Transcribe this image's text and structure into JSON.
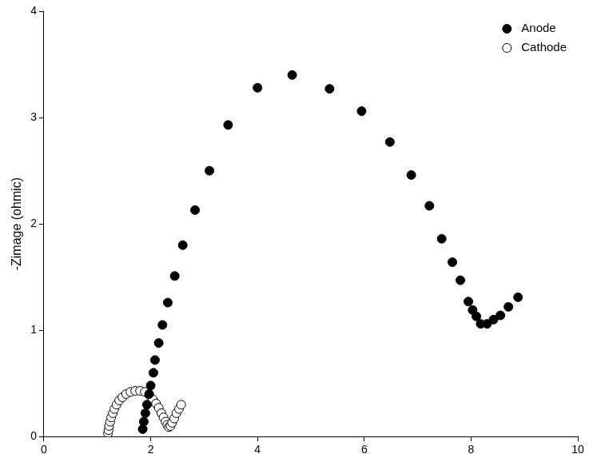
{
  "chart_data": {
    "type": "scatter",
    "y_label": "-Zimage (ohmic)",
    "xlim": [
      0,
      10
    ],
    "xticks": [
      0,
      2,
      4,
      6,
      8,
      10
    ],
    "ylim": [
      0,
      4
    ],
    "yticks": [
      0,
      1,
      2,
      3,
      4
    ],
    "grid": false,
    "legend": "upper right",
    "series": [
      {
        "name": "Anode",
        "color": "#000000",
        "marker": "circle",
        "x": [
          1.85,
          1.87,
          1.9,
          1.93,
          1.97,
          2.0,
          2.05,
          2.08,
          2.15,
          2.22,
          2.32,
          2.45,
          2.6,
          2.83,
          3.1,
          3.45,
          4.0,
          4.65,
          5.35,
          5.95,
          6.48,
          6.88,
          7.22,
          7.45,
          7.65,
          7.8,
          7.95,
          8.03,
          8.1,
          8.18,
          8.3,
          8.42,
          8.55,
          8.7,
          8.88
        ],
        "values": [
          0.07,
          0.14,
          0.22,
          0.3,
          0.4,
          0.48,
          0.6,
          0.72,
          0.88,
          1.05,
          1.26,
          1.51,
          1.8,
          2.13,
          2.5,
          2.93,
          3.28,
          3.4,
          3.27,
          3.06,
          2.77,
          2.46,
          2.17,
          1.86,
          1.64,
          1.47,
          1.27,
          1.19,
          1.13,
          1.06,
          1.06,
          1.1,
          1.14,
          1.22,
          1.31
        ]
      },
      {
        "name": "Cathode",
        "color": "#000000",
        "marker": "open_circle",
        "x": [
          1.2,
          1.21,
          1.22,
          1.24,
          1.26,
          1.29,
          1.32,
          1.36,
          1.41,
          1.47,
          1.54,
          1.62,
          1.71,
          1.8,
          1.89,
          1.97,
          2.04,
          2.1,
          2.15,
          2.2,
          2.24,
          2.28,
          2.31,
          2.34,
          2.37,
          2.4,
          2.44,
          2.48,
          2.53,
          2.57
        ],
        "values": [
          0.03,
          0.06,
          0.1,
          0.14,
          0.18,
          0.22,
          0.26,
          0.3,
          0.34,
          0.37,
          0.4,
          0.42,
          0.43,
          0.43,
          0.42,
          0.39,
          0.35,
          0.31,
          0.27,
          0.22,
          0.18,
          0.14,
          0.11,
          0.09,
          0.1,
          0.13,
          0.17,
          0.22,
          0.26,
          0.3
        ]
      }
    ]
  }
}
